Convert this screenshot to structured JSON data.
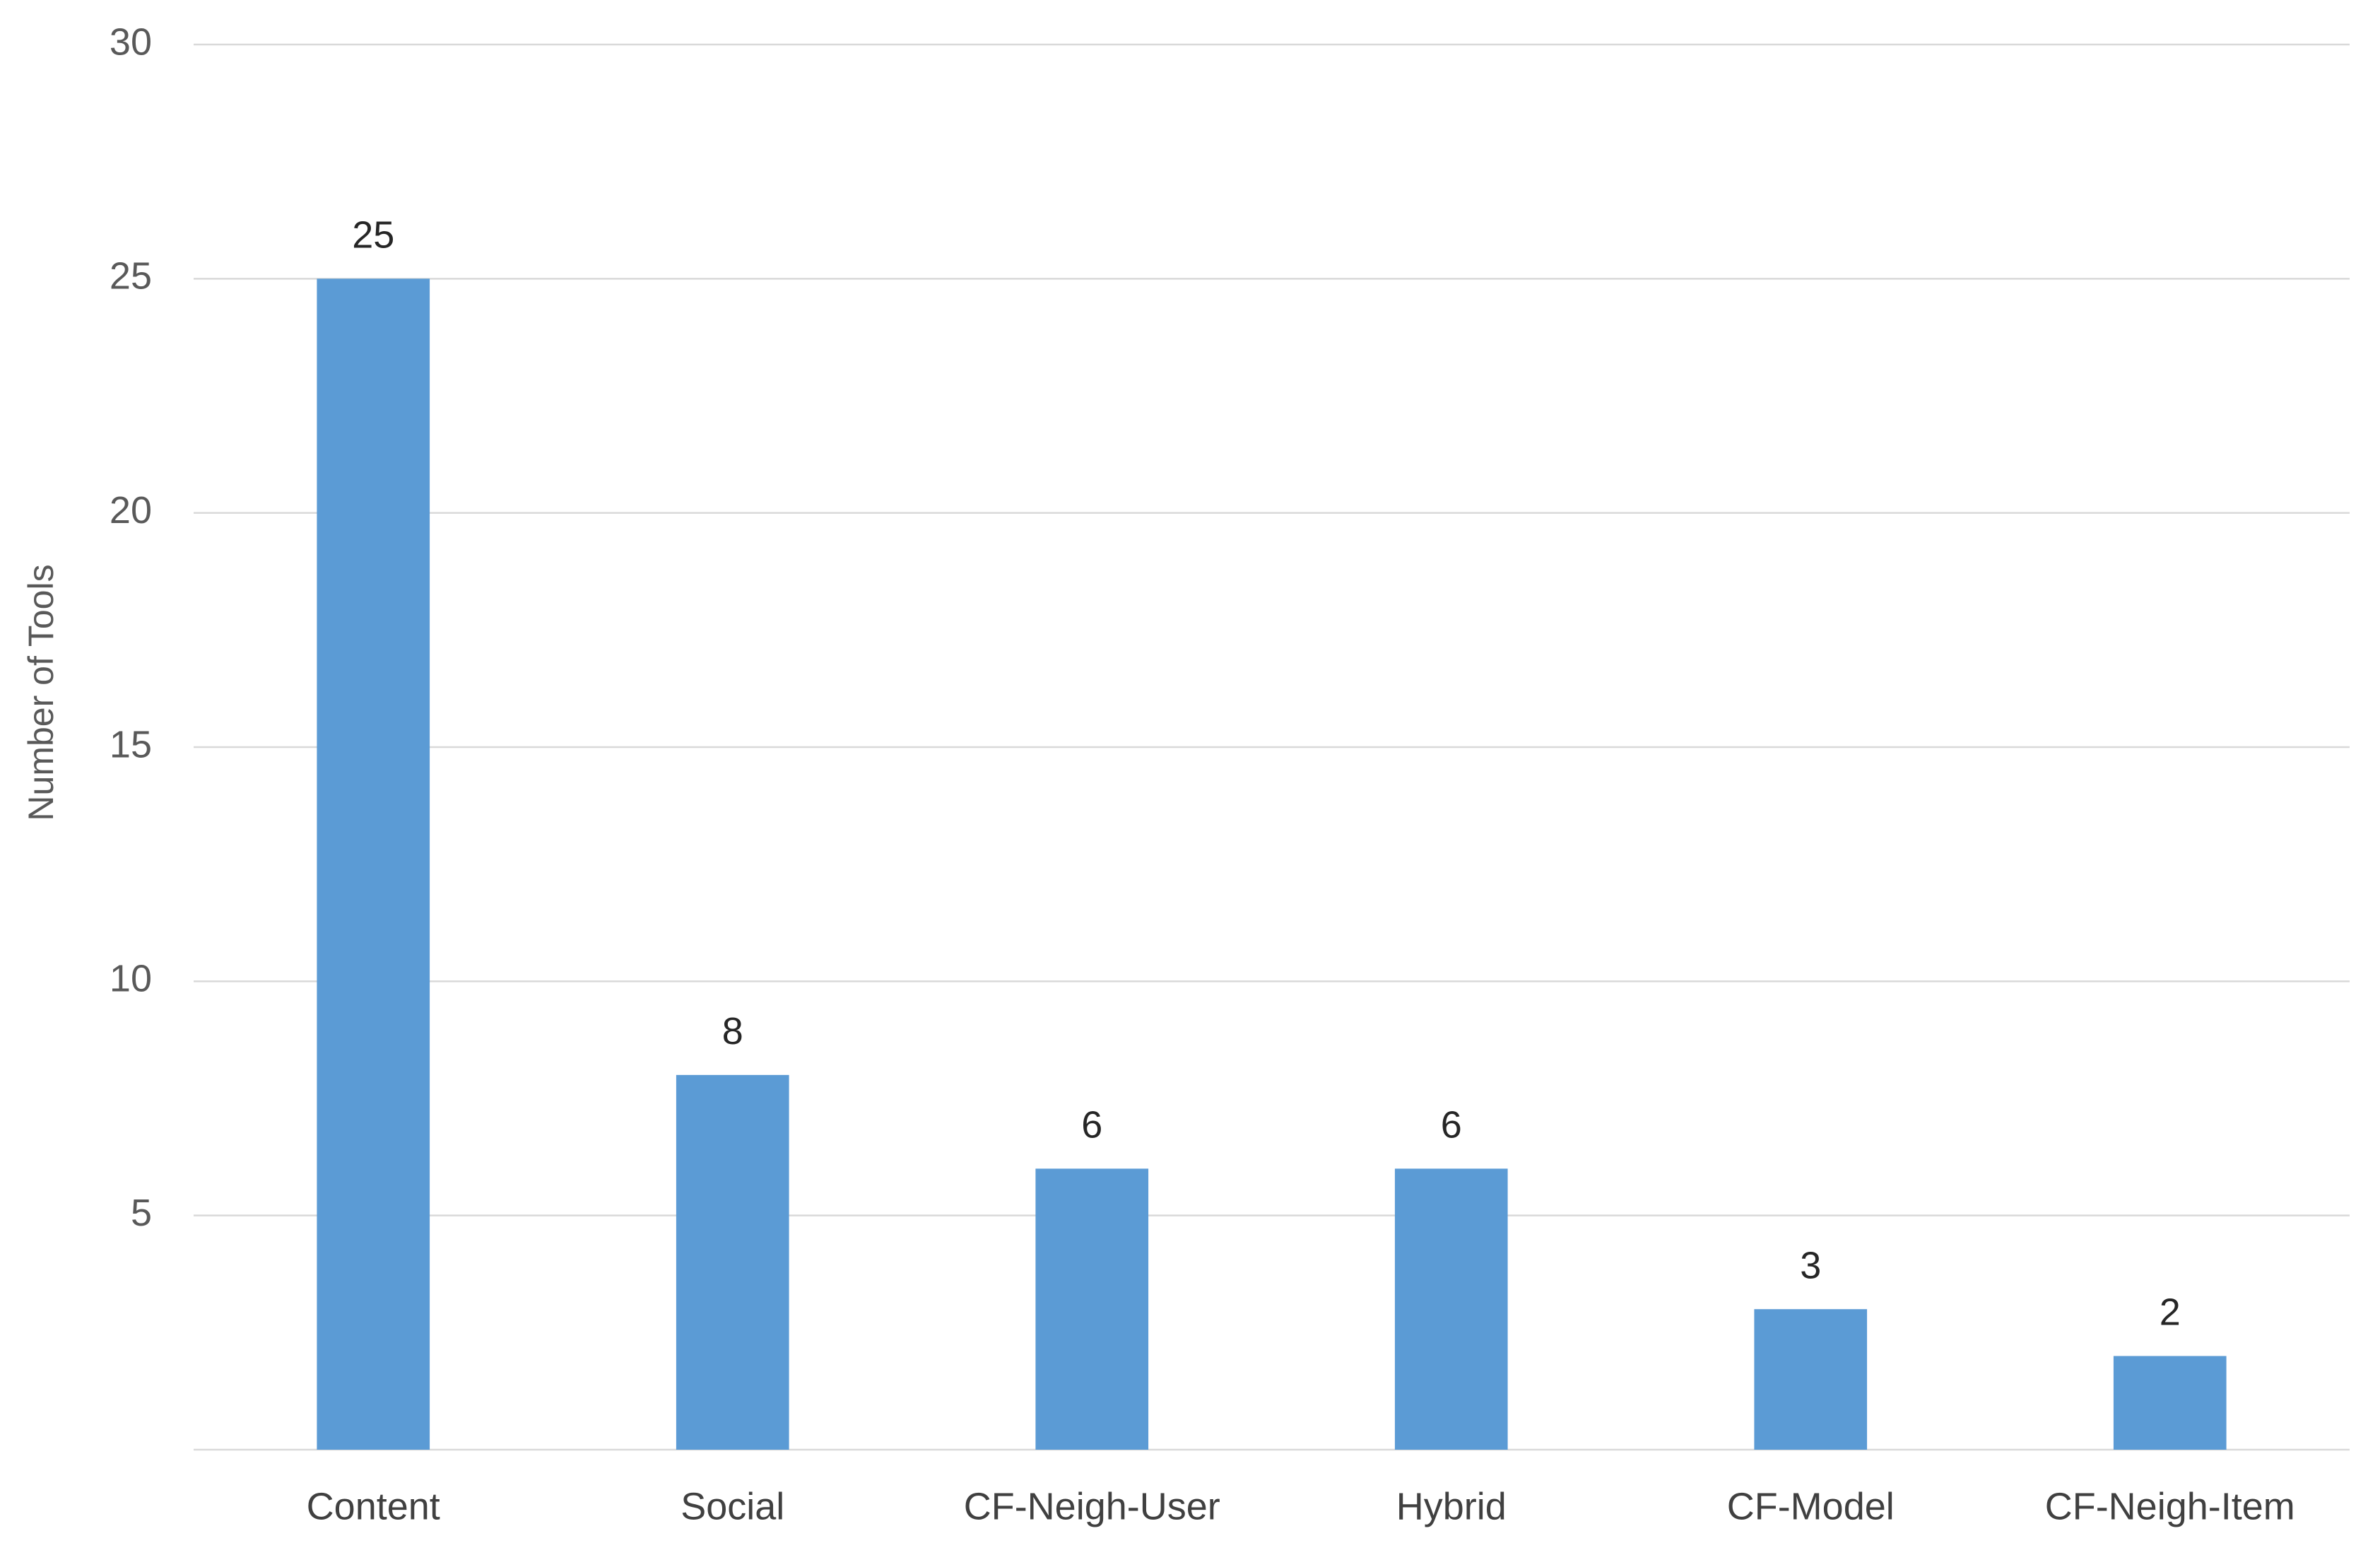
{
  "chart_data": {
    "type": "bar",
    "y_label": "Number of Tools",
    "categories": [
      "Content",
      "Social",
      "CF-Neigh-User",
      "Hybrid",
      "CF-Model",
      "CF-Neigh-Item"
    ],
    "values": [
      25,
      8,
      6,
      6,
      3,
      2
    ],
    "color": "#5b9bd5",
    "ylim": [
      0,
      30
    ],
    "yticks": [
      5,
      10,
      15,
      20,
      25,
      30
    ],
    "grid": true
  }
}
